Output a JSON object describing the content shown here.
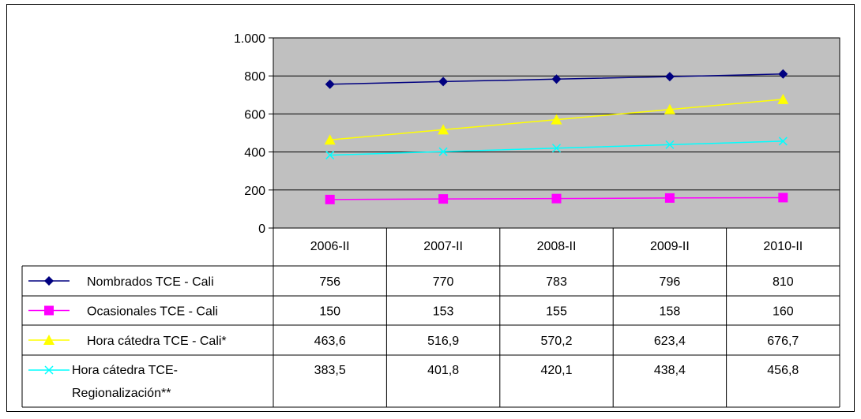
{
  "chart_data": {
    "type": "line",
    "categories": [
      "2006-II",
      "2007-II",
      "2008-II",
      "2009-II",
      "2010-II"
    ],
    "ylim": [
      0,
      1000
    ],
    "yticks": [
      0,
      200,
      400,
      600,
      800,
      1000
    ],
    "ytick_labels": [
      "0",
      "200",
      "400",
      "600",
      "800",
      "1.000"
    ],
    "grid": true,
    "legend": "data-table-below",
    "plot_background": "#c0c0c0",
    "series": [
      {
        "name": "Nombrados TCE - Cali",
        "name_lines": [
          "Nombrados TCE - Cali"
        ],
        "values": [
          756,
          770,
          783,
          796,
          810
        ],
        "labels": [
          "756",
          "770",
          "783",
          "796",
          "810"
        ],
        "color": "#000080",
        "marker": "diamond"
      },
      {
        "name": "Ocasionales TCE - Cali",
        "name_lines": [
          "Ocasionales TCE - Cali"
        ],
        "values": [
          150,
          153,
          155,
          158,
          160
        ],
        "labels": [
          "150",
          "153",
          "155",
          "158",
          "160"
        ],
        "color": "#ff00ff",
        "marker": "square"
      },
      {
        "name": "Hora cátedra TCE - Cali*",
        "name_lines": [
          "Hora cátedra TCE - Cali*"
        ],
        "values": [
          463.6,
          516.9,
          570.2,
          623.4,
          676.7
        ],
        "labels": [
          "463,6",
          "516,9",
          "570,2",
          "623,4",
          "676,7"
        ],
        "color": "#ffff00",
        "marker": "triangle"
      },
      {
        "name": "Hora cátedra TCE- Regionalización**",
        "name_lines": [
          "Hora cátedra TCE-",
          "Regionalización**"
        ],
        "values": [
          383.5,
          401.8,
          420.1,
          438.4,
          456.8
        ],
        "labels": [
          "383,5",
          "401,8",
          "420,1",
          "438,4",
          "456,8"
        ],
        "color": "#00ffff",
        "marker": "x"
      }
    ]
  }
}
